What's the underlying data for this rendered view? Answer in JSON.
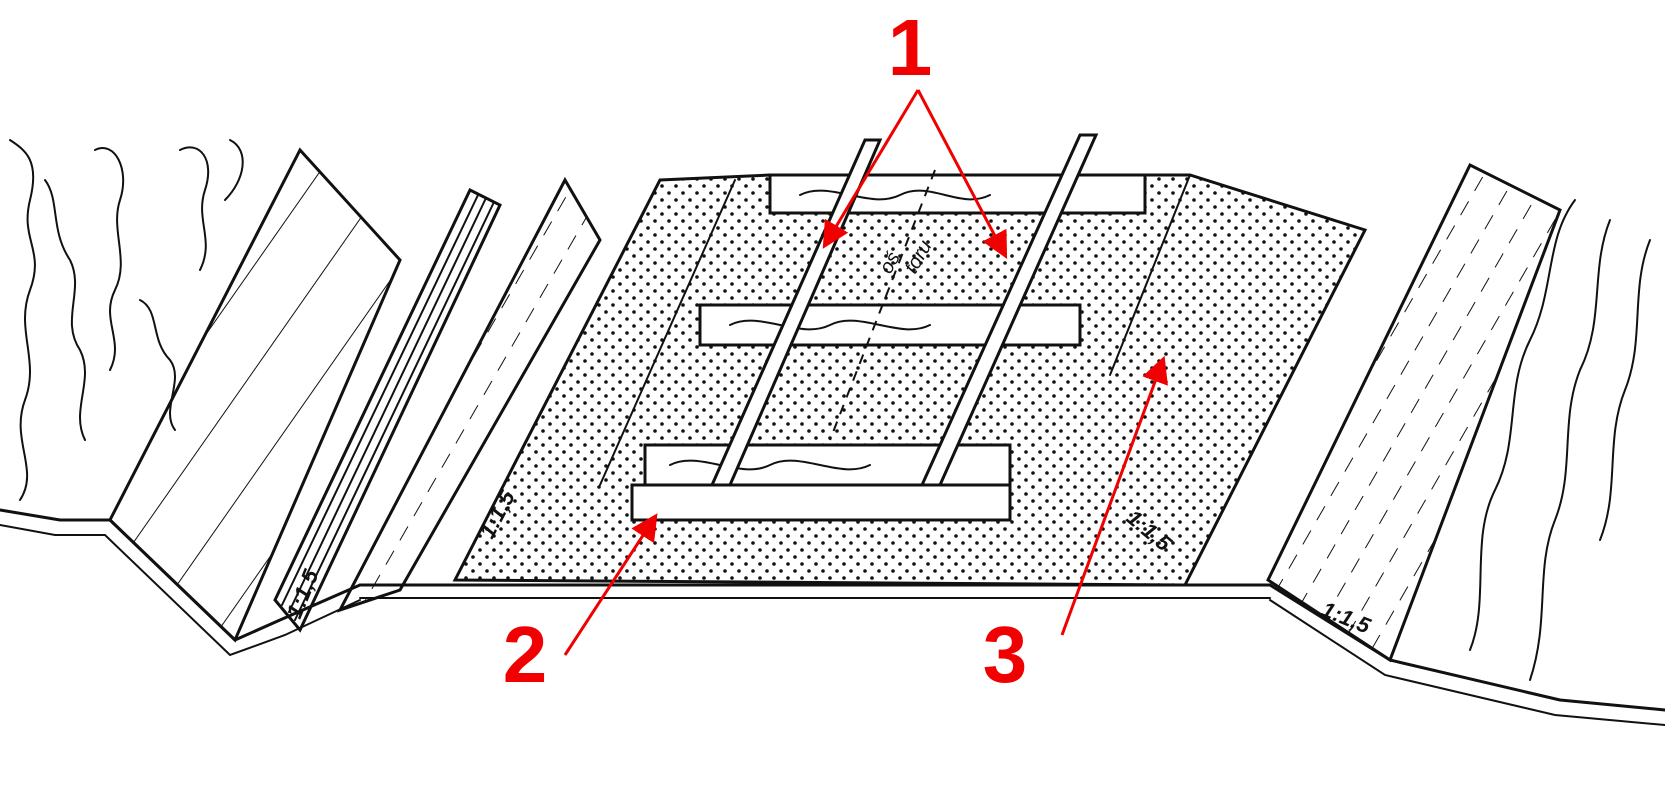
{
  "callouts": {
    "c1": "1",
    "c2": "2",
    "c3": "3"
  },
  "slopes": {
    "s1": "1:1,5",
    "s2": "1:1,5",
    "s3": "1:1,5",
    "s4": "1:1,5"
  },
  "axis_label": {
    "line1": "oś",
    "line2": "toru"
  },
  "colors": {
    "callout_red": "#f00000",
    "ink": "#111111"
  }
}
